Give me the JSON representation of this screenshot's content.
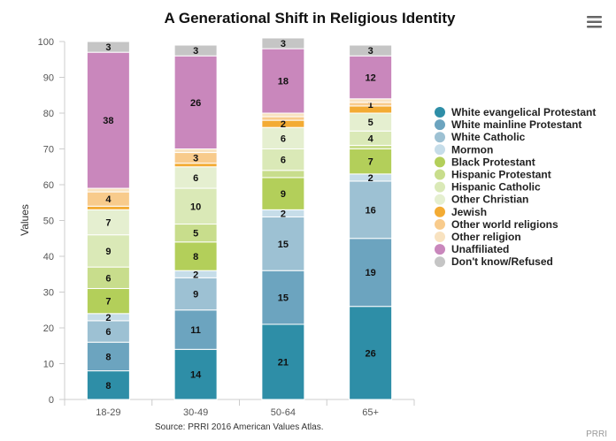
{
  "menu_icon": "hamburger-menu-icon",
  "chart_data": {
    "type": "bar",
    "stacked": true,
    "title": "A Generational Shift in Religious Identity",
    "ylabel": "Values",
    "xlabel": "",
    "ylim": [
      0,
      100
    ],
    "yticks": [
      0,
      10,
      20,
      30,
      40,
      50,
      60,
      70,
      80,
      90,
      100
    ],
    "grid": false,
    "legend_position": "right",
    "categories": [
      "18-29",
      "30-49",
      "50-64",
      "65+"
    ],
    "series": [
      {
        "name": "White evangelical Protestant",
        "color": "#2e8ea7",
        "values": [
          8,
          14,
          21,
          26
        ],
        "labels": [
          "8",
          "14",
          "21",
          "26"
        ]
      },
      {
        "name": "White mainline Protestant",
        "color": "#6ca4bf",
        "values": [
          8,
          11,
          15,
          19
        ],
        "labels": [
          "8",
          "11",
          "15",
          "19"
        ]
      },
      {
        "name": "White Catholic",
        "color": "#9dc1d3",
        "values": [
          6,
          9,
          15,
          16
        ],
        "labels": [
          "6",
          "9",
          "15",
          "16"
        ]
      },
      {
        "name": "Mormon",
        "color": "#c6dde9",
        "values": [
          2,
          2,
          2,
          2
        ],
        "labels": [
          "2",
          "2",
          "2",
          "2"
        ]
      },
      {
        "name": "Black Protestant",
        "color": "#b3cf5a",
        "values": [
          7,
          8,
          9,
          7
        ],
        "labels": [
          "7",
          "8",
          "9",
          "7"
        ]
      },
      {
        "name": "Hispanic Protestant",
        "color": "#c8dd8c",
        "values": [
          6,
          5,
          2,
          1
        ],
        "labels": [
          "6",
          "5",
          "",
          ""
        ]
      },
      {
        "name": "Hispanic Catholic",
        "color": "#dae9b7",
        "values": [
          9,
          10,
          6,
          4
        ],
        "labels": [
          "9",
          "10",
          "6",
          "4"
        ]
      },
      {
        "name": "Other Christian",
        "color": "#e5efd0",
        "values": [
          7,
          6,
          6,
          5
        ],
        "labels": [
          "7",
          "6",
          "6",
          "5"
        ]
      },
      {
        "name": "Jewish",
        "color": "#f3ab33",
        "values": [
          1,
          1,
          2,
          2
        ],
        "labels": [
          "",
          "",
          "2",
          ""
        ]
      },
      {
        "name": "Other world religions",
        "color": "#f8cb8c",
        "values": [
          4,
          3,
          1,
          1
        ],
        "labels": [
          "4",
          "3",
          "",
          "1"
        ]
      },
      {
        "name": "Other religion",
        "color": "#f8e2c0",
        "values": [
          1,
          1,
          1,
          1
        ],
        "labels": [
          "",
          "",
          "",
          ""
        ]
      },
      {
        "name": "Unaffiliated",
        "color": "#c987bc",
        "values": [
          38,
          26,
          18,
          12
        ],
        "labels": [
          "38",
          "26",
          "18",
          "12"
        ]
      },
      {
        "name": "Don't know/Refused",
        "color": "#c5c5c5",
        "values": [
          3,
          3,
          3,
          3
        ],
        "labels": [
          "3",
          "3",
          "3",
          "3"
        ]
      }
    ],
    "source": "Source: PRRI 2016 American Values Atlas.",
    "credit": "PRRI"
  }
}
